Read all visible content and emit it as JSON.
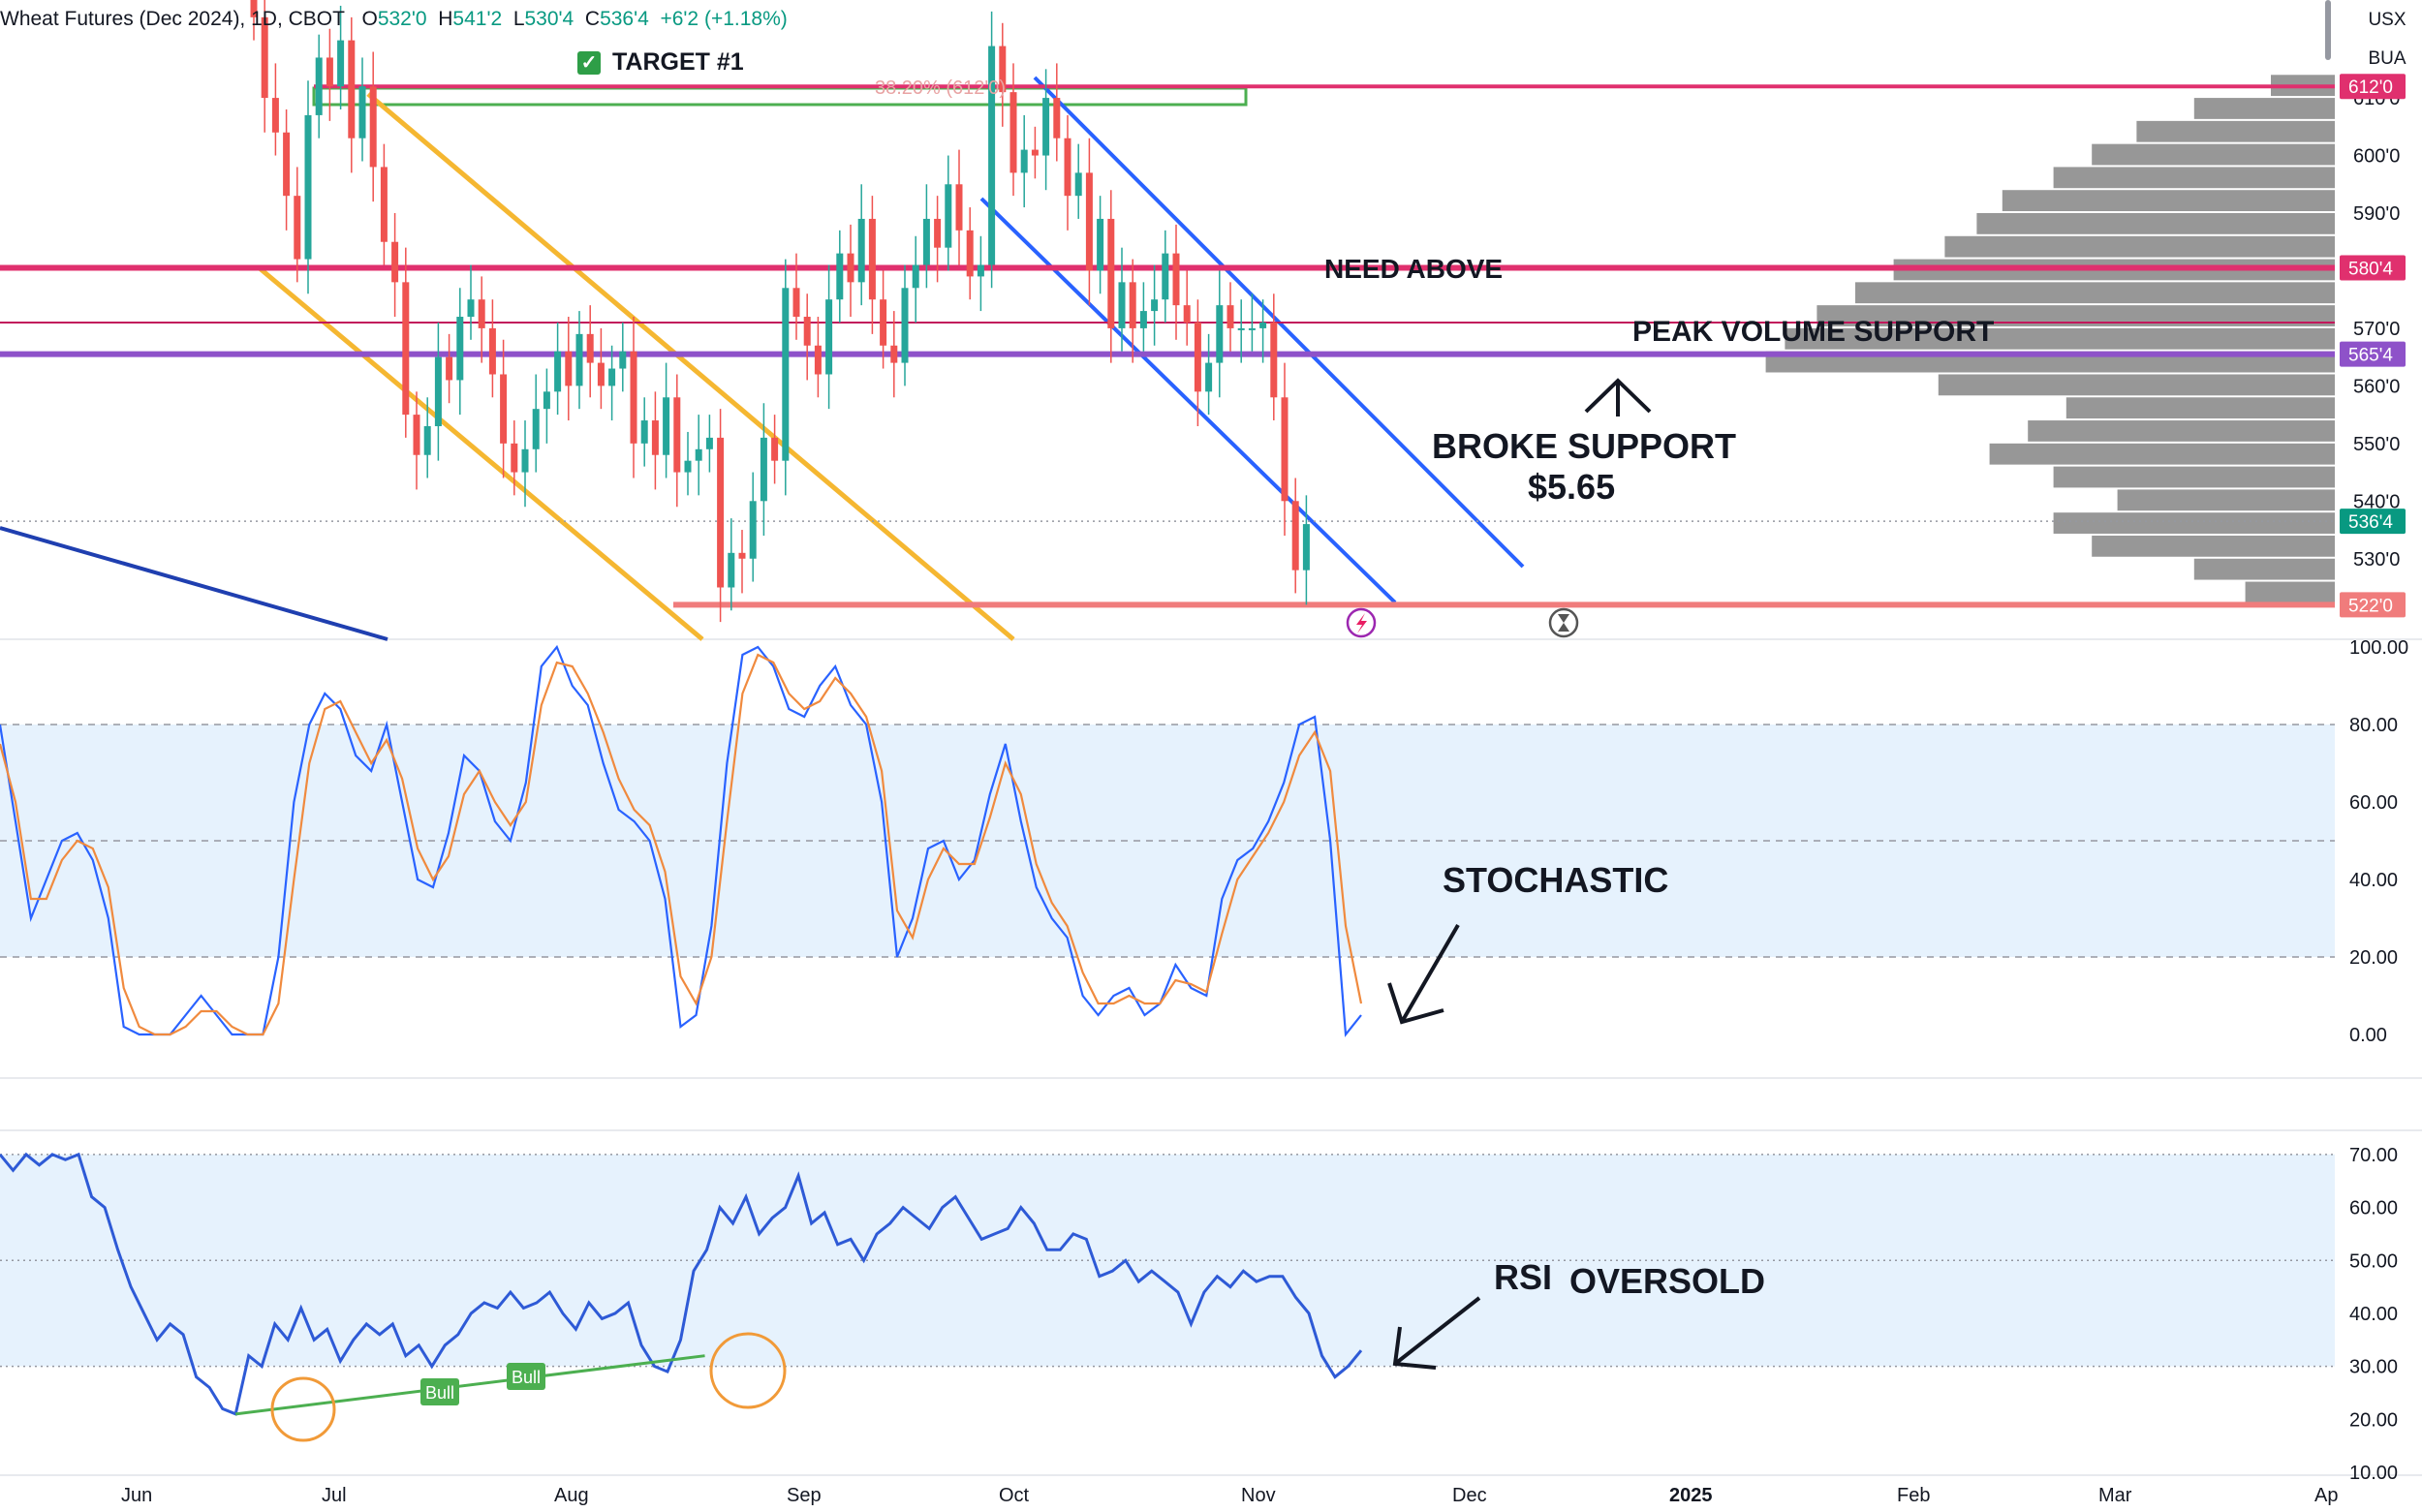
{
  "header": {
    "symbol": "Wheat Futures (Dec 2024), 1D, CBOT",
    "open_label": "O",
    "open": "532'0",
    "high_label": "H",
    "high": "541'2",
    "low_label": "L",
    "low": "530'4",
    "close_label": "C",
    "close": "536'4",
    "change": "+6'2 (+1.18%)"
  },
  "corner": {
    "currency": "USX",
    "sub": "BUA"
  },
  "annotations": {
    "target": "TARGET #1",
    "fib_label": "38.20% (612'0)",
    "need_above": "NEED ABOVE",
    "peak_volume": "PEAK VOLUME SUPPORT",
    "broke_support_1": "BROKE SUPPORT",
    "broke_support_2": "$5.65",
    "stochastic": "STOCHASTIC",
    "rsi": "RSI",
    "oversold": "OVERSOLD",
    "bull": "Bull"
  },
  "colors": {
    "up": "#26a69a",
    "down": "#ef5350",
    "price_line": "#e0306e",
    "peak_line": "#8e52c9",
    "support_line": "#f07c7c",
    "channel_yellow": "#f5b731",
    "channel_blue": "#2962ff",
    "stoch_k": "#2962ff",
    "stoch_d": "#f08a3e",
    "rsi": "#2e5ad6",
    "band": "#e6f2fd",
    "volume": "#8c8c8c"
  },
  "chart_data": [
    {
      "type": "candlestick",
      "title": "Wheat Futures (Dec 2024), 1D, CBOT",
      "x_ticks": [
        "Jun",
        "Jul",
        "Aug",
        "Sep",
        "Oct",
        "Nov",
        "Dec",
        "2025",
        "Feb",
        "Mar",
        "Ap"
      ],
      "y_ticks": [
        "530'0",
        "540'0",
        "550'0",
        "560'0",
        "570'0",
        "580'0",
        "590'0",
        "600'0",
        "610'0"
      ],
      "ylim": [
        516,
        627
      ],
      "price_labels": [
        {
          "label": "612'0",
          "value": 612,
          "role": "resistance"
        },
        {
          "label": "580'4",
          "value": 580.5,
          "role": "need-above"
        },
        {
          "label": "565'4",
          "value": 565.5,
          "role": "peak-volume"
        },
        {
          "label": "536'4",
          "value": 536.5,
          "role": "last"
        },
        {
          "label": "522'0",
          "value": 522,
          "role": "support"
        }
      ],
      "closes": [
        624,
        610,
        604,
        593,
        582,
        607,
        617,
        612,
        620,
        603,
        612,
        598,
        585,
        578,
        555,
        548,
        553,
        565,
        561,
        572,
        575,
        570,
        562,
        550,
        545,
        549,
        556,
        559,
        566,
        560,
        569,
        564,
        560,
        563,
        566,
        550,
        554,
        548,
        558,
        545,
        547,
        549,
        551,
        525,
        531,
        530,
        540,
        551,
        547,
        577,
        572,
        567,
        562,
        575,
        583,
        578,
        589,
        575,
        567,
        564,
        577,
        581,
        589,
        584,
        595,
        587,
        579,
        581,
        619,
        611,
        597,
        601,
        600,
        610,
        603,
        593,
        597,
        580,
        589,
        570,
        578,
        570,
        573,
        575,
        583,
        574,
        571,
        559,
        564,
        574,
        570,
        570,
        570,
        571,
        558,
        540,
        528,
        536
      ],
      "volume_profile": {
        "bins": [
          612,
          608,
          604,
          600,
          596,
          592,
          588,
          584,
          580,
          576,
          572,
          568,
          564,
          560,
          556,
          552,
          548,
          544,
          540,
          536,
          532,
          528,
          524
        ],
        "values": [
          10,
          22,
          31,
          38,
          44,
          52,
          56,
          61,
          69,
          75,
          81,
          86,
          89,
          62,
          42,
          48,
          54,
          44,
          34,
          44,
          38,
          22,
          14
        ]
      }
    },
    {
      "type": "line",
      "title": "STOCHASTIC",
      "y_ticks": [
        "100.00",
        "80.00",
        "60.00",
        "40.00",
        "20.00",
        "0.00"
      ],
      "ylim": [
        -10,
        100
      ],
      "band": [
        20,
        80
      ],
      "series": [
        {
          "values": [
            80,
            55,
            30,
            40,
            50,
            52,
            45,
            30,
            2,
            0,
            0,
            0,
            5,
            10,
            5,
            0,
            0,
            0,
            20,
            60,
            80,
            88,
            84,
            72,
            68,
            80,
            60,
            40,
            38,
            52,
            72,
            68,
            55,
            50,
            65,
            95,
            100,
            90,
            85,
            70,
            58,
            55,
            50,
            35,
            2,
            5,
            28,
            70,
            98,
            100,
            95,
            84,
            82,
            90,
            95,
            85,
            80,
            60,
            20,
            30,
            48,
            50,
            40,
            45,
            62,
            75,
            55,
            38,
            30,
            25,
            10,
            5,
            10,
            12,
            5,
            8,
            18,
            12,
            10,
            35,
            45,
            48,
            55,
            65,
            80,
            82,
            50,
            0,
            5
          ]
        },
        {
          "values": [
            75,
            60,
            35,
            35,
            45,
            50,
            48,
            38,
            12,
            2,
            0,
            0,
            2,
            6,
            6,
            2,
            0,
            0,
            8,
            40,
            70,
            84,
            86,
            78,
            70,
            76,
            66,
            48,
            40,
            46,
            62,
            68,
            60,
            54,
            60,
            85,
            96,
            95,
            88,
            78,
            66,
            58,
            54,
            42,
            15,
            8,
            20,
            55,
            88,
            98,
            96,
            88,
            84,
            86,
            92,
            88,
            82,
            68,
            32,
            25,
            40,
            48,
            44,
            44,
            56,
            70,
            62,
            44,
            34,
            28,
            16,
            8,
            8,
            10,
            8,
            8,
            14,
            13,
            11,
            26,
            40,
            46,
            52,
            60,
            72,
            78,
            68,
            28,
            8
          ]
        }
      ]
    },
    {
      "type": "line",
      "title": "RSI",
      "y_ticks": [
        "70.00",
        "60.00",
        "50.00",
        "40.00",
        "30.00",
        "20.00",
        "10.00"
      ],
      "ylim": [
        10,
        74
      ],
      "band": [
        30,
        70
      ],
      "series": [
        {
          "values": [
            70,
            67,
            70,
            68,
            70,
            69,
            70,
            62,
            60,
            52,
            45,
            40,
            35,
            38,
            36,
            28,
            26,
            22,
            21,
            32,
            30,
            38,
            35,
            41,
            35,
            37,
            31,
            35,
            38,
            36,
            38,
            32,
            34,
            30,
            34,
            36,
            40,
            42,
            41,
            44,
            41,
            42,
            44,
            40,
            37,
            42,
            39,
            40,
            42,
            34,
            30,
            29,
            35,
            48,
            52,
            60,
            57,
            62,
            55,
            58,
            60,
            66,
            57,
            59,
            53,
            54,
            50,
            55,
            57,
            60,
            58,
            56,
            60,
            62,
            58,
            54,
            55,
            56,
            60,
            57,
            52,
            52,
            55,
            54,
            47,
            48,
            50,
            46,
            48,
            46,
            44,
            38,
            44,
            47,
            45,
            48,
            46,
            47,
            47,
            43,
            40,
            32,
            28,
            30,
            33
          ]
        }
      ],
      "markers": [
        {
          "label": "Bull"
        },
        {
          "label": "Bull"
        }
      ]
    }
  ]
}
